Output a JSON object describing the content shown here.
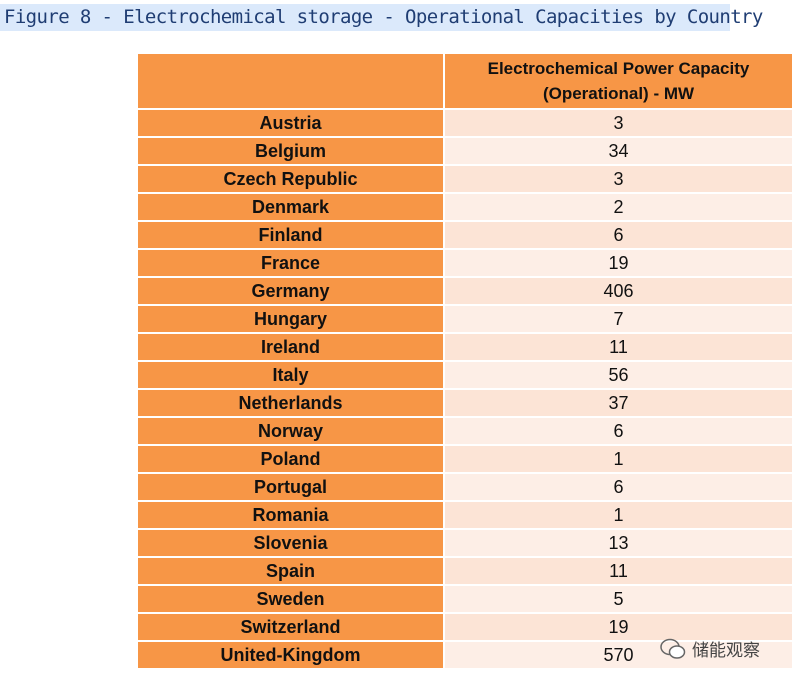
{
  "caption": "Figure 8 - Electrochemical storage - Operational Capacities by Country",
  "table": {
    "column_header": "Electrochemical Power Capacity (Operational) - MW",
    "rows": [
      [
        "Austria",
        3
      ],
      [
        "Belgium",
        34
      ],
      [
        "Czech Republic",
        3
      ],
      [
        "Denmark",
        2
      ],
      [
        "Finland",
        6
      ],
      [
        "France",
        19
      ],
      [
        "Germany",
        406
      ],
      [
        "Hungary",
        7
      ],
      [
        "Ireland",
        11
      ],
      [
        "Italy",
        56
      ],
      [
        "Netherlands",
        37
      ],
      [
        "Norway",
        6
      ],
      [
        "Poland",
        1
      ],
      [
        "Portugal",
        6
      ],
      [
        "Romania",
        1
      ],
      [
        "Slovenia",
        13
      ],
      [
        "Spain",
        11
      ],
      [
        "Sweden",
        5
      ],
      [
        "Switzerland",
        19
      ],
      [
        "United-Kingdom",
        570
      ]
    ]
  },
  "watermark": "储能观察"
}
